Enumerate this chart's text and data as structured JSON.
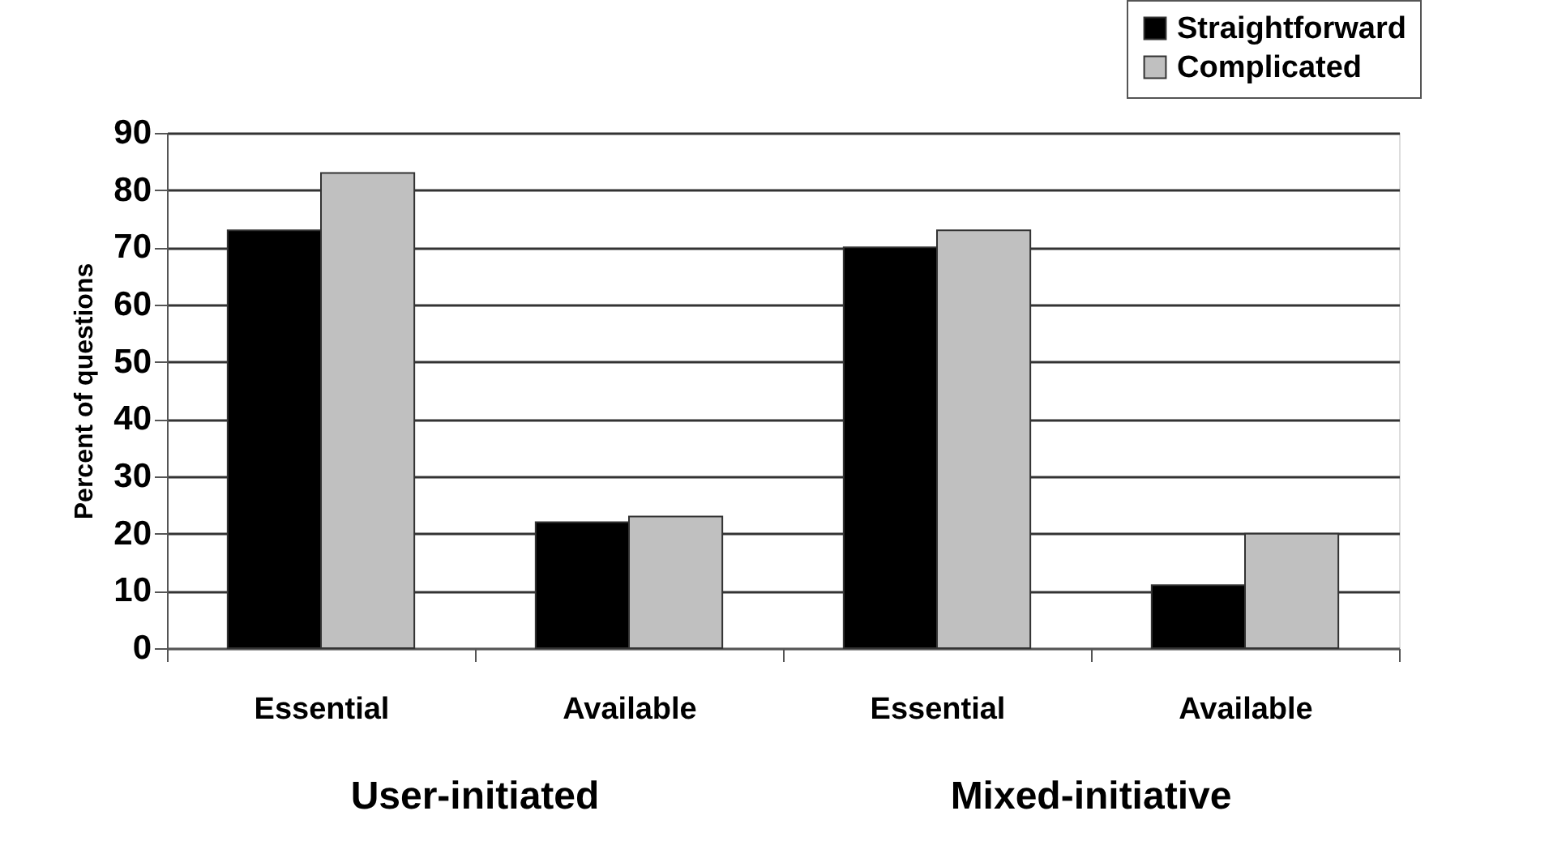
{
  "chart_data": {
    "type": "bar",
    "ylabel": "Percent of questions",
    "categories": [
      "Essential",
      "Available",
      "Essential",
      "Available"
    ],
    "series": [
      {
        "name": "Straightforward",
        "color": "#000000",
        "values": [
          73,
          22,
          70,
          11
        ]
      },
      {
        "name": "Complicated",
        "color": "#c0c0c0",
        "values": [
          83,
          23,
          73,
          20
        ]
      }
    ],
    "ylim": [
      0,
      90
    ],
    "yticks": [
      0,
      10,
      20,
      30,
      40,
      50,
      60,
      70,
      80,
      90
    ],
    "grid": "y",
    "legend": "top right",
    "annotations": [
      "User-initiated",
      "Mixed-initiative"
    ]
  }
}
